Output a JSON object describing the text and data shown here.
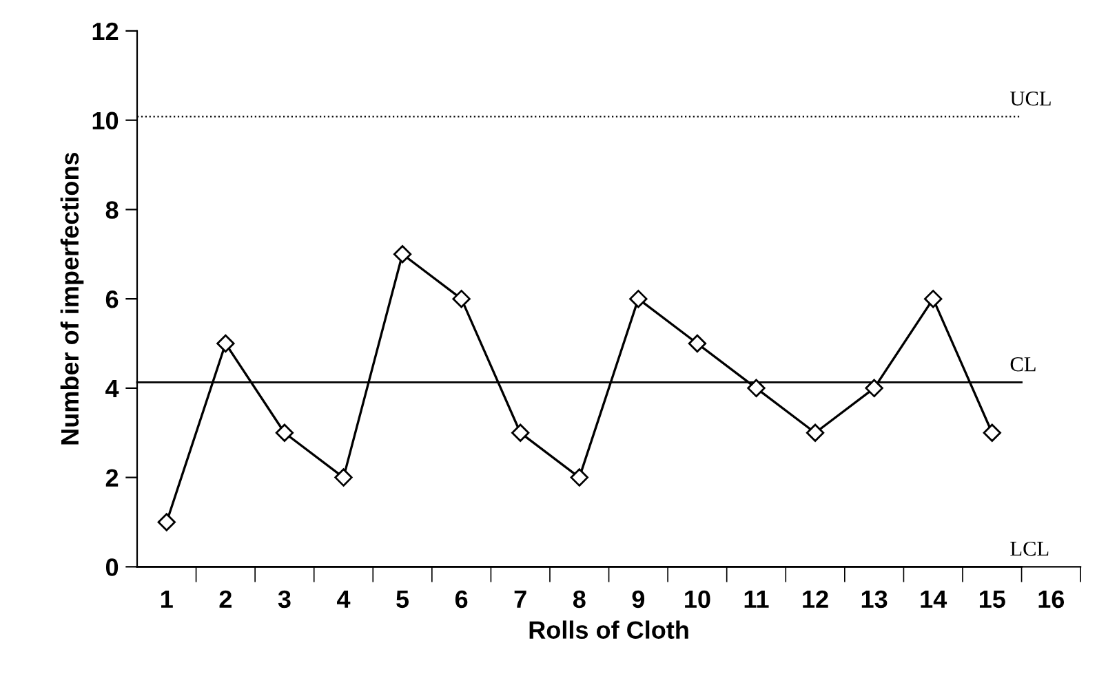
{
  "chart_data": {
    "type": "line",
    "xlabel": "Rolls of Cloth",
    "ylabel": "Number of imperfections",
    "categories": [
      "1",
      "2",
      "3",
      "4",
      "5",
      "6",
      "7",
      "8",
      "9",
      "10",
      "11",
      "12",
      "13",
      "14",
      "15",
      "16"
    ],
    "series": [
      {
        "color": "#000000",
        "values": [
          1,
          5,
          3,
          2,
          7,
          6,
          3,
          2,
          6,
          5,
          4,
          3,
          4,
          6,
          3,
          null
        ]
      }
    ],
    "ylim": [
      0,
      12
    ],
    "yticks": [
      0,
      2,
      4,
      6,
      8,
      10,
      12
    ],
    "marker": "diamond",
    "line_style": "solid",
    "grid": false,
    "legend": false,
    "ref_lines": [
      {
        "axis": "y",
        "value": 10.08,
        "label": "UCL",
        "line_style": "dotted",
        "color": "#000000"
      },
      {
        "axis": "y",
        "value": 4.13,
        "label": "CL",
        "line_style": "solid",
        "color": "#000000"
      },
      {
        "axis": "y",
        "value": 0,
        "label": "LCL",
        "line_style": "solid",
        "color": "#000000"
      }
    ]
  }
}
